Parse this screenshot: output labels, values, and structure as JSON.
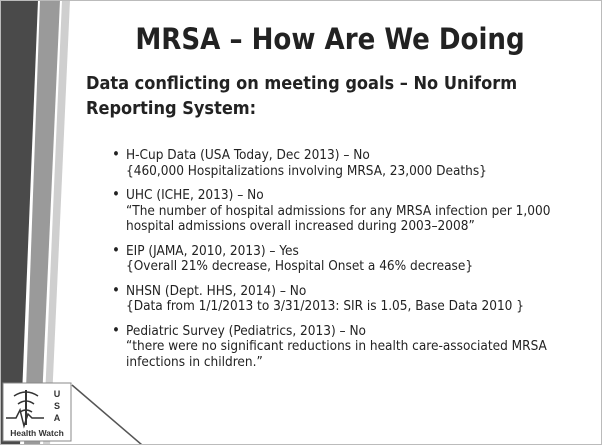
{
  "title": "MRSA – How Are We Doing",
  "heading": "Data conflicting on meeting goals – No Uniform Reporting System:",
  "bullets": [
    {
      "label": "H-Cup Data (USA Today, Dec 2013) – No",
      "detail": "{460,000 Hospitalizations involving MRSA, 23,000 Deaths}"
    },
    {
      "label": "UHC (ICHE, 2013) – No",
      "detail": "“The number of hospital admissions for any MRSA infection per 1,000 hospital admissions overall increased during 2003–2008”"
    },
    {
      "label": "EIP (JAMA, 2010, 2013) – Yes",
      "detail": "{Overall 21% decrease, Hospital Onset a 46% decrease}"
    },
    {
      "label": "NHSN (Dept. HHS, 2014) – No",
      "detail": "{Data from 1/1/2013 to 3/31/2013: SIR is 1.05, Base Data 2010 }"
    },
    {
      "label": "Pediatric Survey (Pediatrics, 2013) – No",
      "detail": "“there were no significant reductions in health care-associated MRSA infections in children.”"
    }
  ],
  "logo": {
    "letters": [
      "U",
      "S",
      "A"
    ],
    "caption": "Health Watch"
  }
}
